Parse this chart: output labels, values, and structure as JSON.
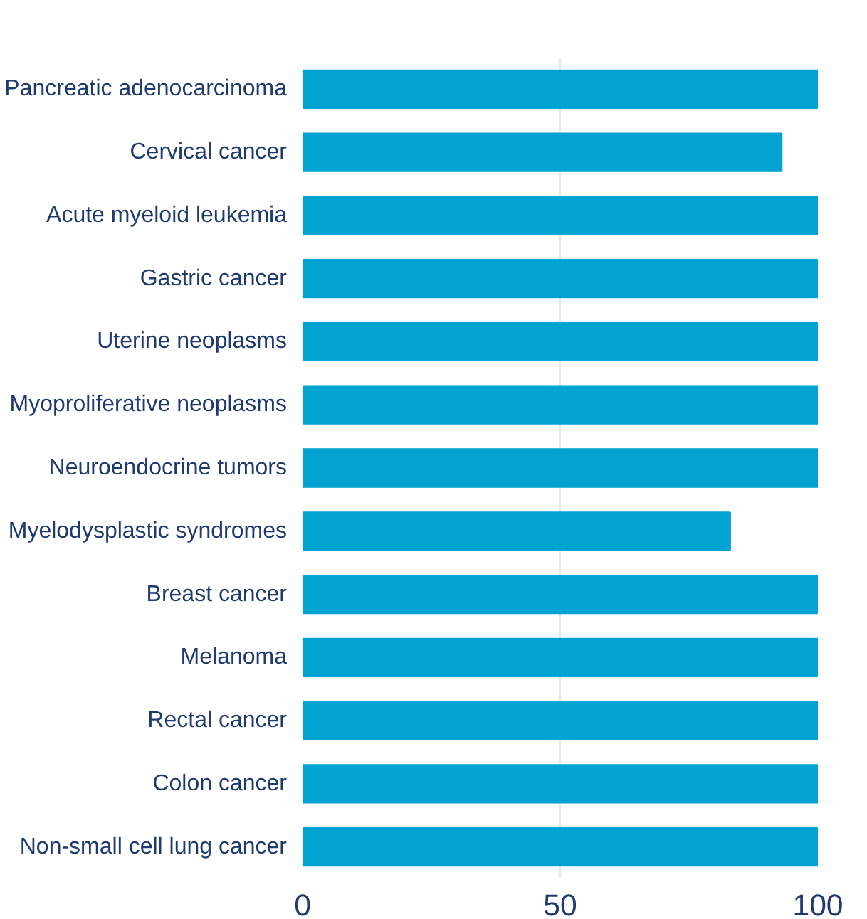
{
  "chart_data": {
    "type": "bar",
    "orientation": "horizontal",
    "categories": [
      "Pancreatic adenocarcinoma",
      "Cervical cancer",
      "Acute myeloid leukemia",
      "Gastric cancer",
      "Uterine neoplasms",
      "Myoproliferative neoplasms",
      "Neuroendocrine tumors",
      "Myelodysplastic syndromes",
      "Breast cancer",
      "Melanoma",
      "Rectal cancer",
      "Colon cancer",
      "Non-small cell lung cancer"
    ],
    "values": [
      100,
      93,
      100,
      100,
      100,
      100,
      100,
      83,
      100,
      100,
      100,
      100,
      100
    ],
    "color": "#00a3d2",
    "xlim": [
      0,
      100
    ],
    "xticks": [
      0,
      50,
      100
    ],
    "grid": "x"
  }
}
